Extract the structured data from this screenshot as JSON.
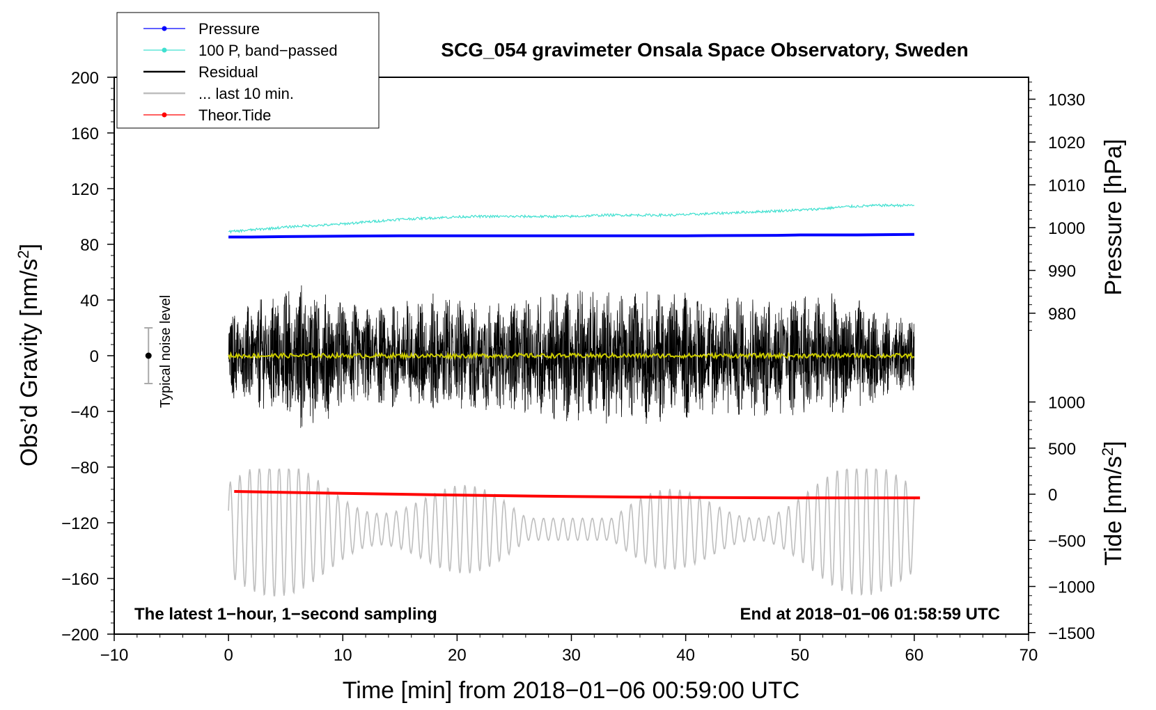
{
  "chart_data": {
    "type": "line",
    "title": "SCG_054 gravimeter Onsala Space Observatory, Sweden",
    "xlabel": "Time [min] from 2018−01−06 00:59:00 UTC",
    "ylabel_left": "Obs’d Gravity [nm/s",
    "ylabel_left_sup": "2",
    "ylabel_left_close": "]",
    "ylabel_right_pressure": "Pressure [hPa]",
    "ylabel_right_tide": "Tide [nm/s",
    "ylabel_right_tide_sup": "2",
    "ylabel_right_tide_close": "]",
    "xlim": [
      -10,
      70
    ],
    "ylim": [
      -200,
      200
    ],
    "x_ticks": [
      "−10",
      "0",
      "10",
      "20",
      "30",
      "40",
      "50",
      "60",
      "70"
    ],
    "y_ticks": [
      "−200",
      "−160",
      "−120",
      "−80",
      "−40",
      "0",
      "40",
      "80",
      "120",
      "160",
      "200"
    ],
    "pressure_ticks": [
      "980",
      "990",
      "1000",
      "1010",
      "1020",
      "1030"
    ],
    "tide_ticks": [
      "−1500",
      "−1000",
      "−500",
      "0",
      "500",
      "1000"
    ],
    "annotation_left": "The latest 1−hour, 1−second sampling",
    "annotation_right": "End at 2018−01−06 01:58:59 UTC",
    "noise_label": "Typical noise level",
    "noise_level": {
      "x": -7,
      "center": 0,
      "half_range": 20
    },
    "legend": [
      {
        "label": "Pressure",
        "color": "#0000ff",
        "marker": true
      },
      {
        "label": "100 P, band−passed",
        "color": "#40e0d0",
        "marker": true
      },
      {
        "label": "Residual",
        "color": "#000000",
        "marker": false
      },
      {
        "label": "... last 10 min.",
        "color": "#bebebe",
        "marker": false
      },
      {
        "label": "Theor.Tide",
        "color": "#ff0000",
        "marker": true
      }
    ],
    "series": [
      {
        "name": "Pressure",
        "color": "#0000ff",
        "axis": "pressure_hPa",
        "x": [
          0,
          2,
          5,
          10,
          15,
          20,
          30,
          40,
          48,
          50,
          55,
          60
        ],
        "y": [
          997.8,
          997.8,
          997.9,
          998.0,
          998.1,
          998.1,
          998.1,
          998.1,
          998.2,
          998.3,
          998.3,
          998.4
        ]
      },
      {
        "name": "100 P, band-passed",
        "color": "#40e0d0",
        "axis": "gravity_nm_s2",
        "x": [
          0,
          3,
          6,
          9,
          12,
          15,
          18,
          21,
          24,
          27,
          30,
          33,
          36,
          39,
          42,
          45,
          48,
          51,
          54,
          57,
          60
        ],
        "y": [
          89,
          91,
          93,
          94,
          96,
          98,
          99,
          100,
          100,
          100,
          100,
          101,
          101,
          101,
          102,
          103,
          104,
          105,
          107,
          108,
          108
        ]
      },
      {
        "name": "Residual",
        "color": "#000000",
        "axis": "gravity_nm_s2",
        "x_range": [
          0,
          60
        ],
        "envelope": [
          -57,
          58
        ],
        "envelope_x": [
          0,
          6,
          12,
          18,
          24,
          30,
          36,
          42,
          48,
          54,
          60
        ],
        "envelope_y": [
          30,
          55,
          35,
          45,
          40,
          50,
          50,
          45,
          45,
          45,
          25
        ]
      },
      {
        "name": "Residual smoothed",
        "color": "#cccc00",
        "axis": "gravity_nm_s2",
        "x_range": [
          0,
          60
        ],
        "value": 0
      },
      {
        "name": "... last 10 min.",
        "color": "#bebebe",
        "axis": "tide_nm_s2",
        "x_range": [
          0,
          60
        ],
        "envelope": [
          -1100,
          270
        ]
      },
      {
        "name": "Theor.Tide",
        "color": "#ff0000",
        "axis": "tide_nm_s2",
        "x": [
          0.5,
          5,
          10,
          15,
          20,
          30,
          40,
          50,
          60.5
        ],
        "y": [
          30,
          20,
          10,
          0,
          -10,
          -25,
          -35,
          -40,
          -40
        ]
      }
    ]
  }
}
